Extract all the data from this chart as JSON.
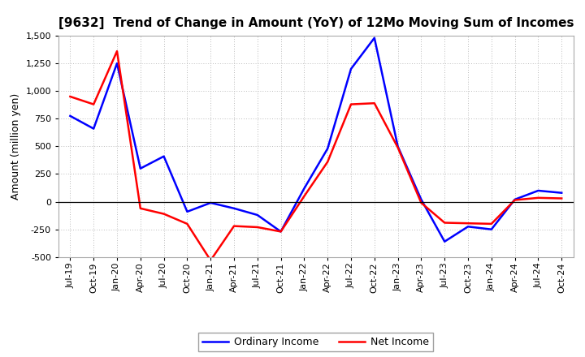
{
  "title": "[9632]  Trend of Change in Amount (YoY) of 12Mo Moving Sum of Incomes",
  "ylabel": "Amount (million yen)",
  "x_labels": [
    "Jul-19",
    "Oct-19",
    "Jan-20",
    "Apr-20",
    "Jul-20",
    "Oct-20",
    "Jan-21",
    "Apr-21",
    "Jul-21",
    "Oct-21",
    "Jan-22",
    "Apr-22",
    "Jul-22",
    "Oct-22",
    "Jan-23",
    "Apr-23",
    "Jul-23",
    "Oct-23",
    "Jan-24",
    "Apr-24",
    "Jul-24",
    "Oct-24"
  ],
  "ordinary_income": [
    775,
    660,
    1250,
    300,
    410,
    -90,
    -10,
    -60,
    -120,
    -270,
    120,
    480,
    1200,
    1480,
    500,
    20,
    -360,
    -225,
    -250,
    20,
    100,
    80
  ],
  "net_income": [
    950,
    880,
    1360,
    -60,
    -110,
    -200,
    -530,
    -220,
    -230,
    -270,
    50,
    360,
    880,
    890,
    490,
    -10,
    -190,
    -195,
    -200,
    15,
    35,
    30
  ],
  "ordinary_income_color": "#0000ff",
  "net_income_color": "#ff0000",
  "ylim": [
    -500,
    1500
  ],
  "yticks": [
    -500,
    -250,
    0,
    250,
    500,
    750,
    1000,
    1250,
    1500
  ],
  "legend_labels": [
    "Ordinary Income",
    "Net Income"
  ],
  "background_color": "#ffffff",
  "grid_color": "#bbbbbb",
  "linewidth": 1.8,
  "title_fontsize": 11,
  "axis_fontsize": 8,
  "ylabel_fontsize": 9
}
